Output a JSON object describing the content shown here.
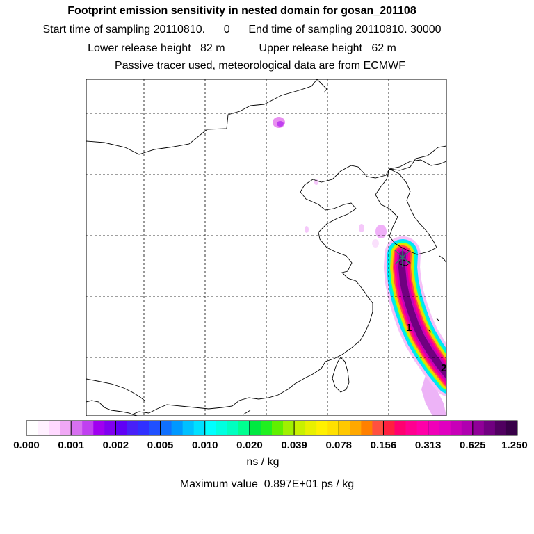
{
  "header": {
    "title": "Footprint emission sensitivity in nested domain for gosan_201108",
    "sampling": "Start time of sampling 20110810.      0      End time of sampling 20110810. 30000",
    "heights": "Lower release height   82 m           Upper release height   62 m",
    "tracer": "Passive tracer used, meteorological data are from ECMWF"
  },
  "chart_data": {
    "type": "heatmap",
    "title": "Footprint emission sensitivity in nested domain for gosan_201108",
    "colorbar": {
      "tick_labels": [
        "0.000",
        "0.001",
        "0.002",
        "0.005",
        "0.010",
        "0.020",
        "0.039",
        "0.078",
        "0.156",
        "0.313",
        "0.625",
        "1.250"
      ],
      "colors": [
        "#ffffff",
        "#fff0ff",
        "#ffd9ff",
        "#f0a8f5",
        "#d770f0",
        "#c040f0",
        "#a000f0",
        "#8000f0",
        "#6000f5",
        "#4820f8",
        "#3030ff",
        "#2050ff",
        "#1070ff",
        "#0098ff",
        "#00c0ff",
        "#00e0ff",
        "#00ffff",
        "#00ffe0",
        "#00ffc0",
        "#00ff90",
        "#00e840",
        "#20f020",
        "#60f000",
        "#a0f000",
        "#c8f000",
        "#e8f000",
        "#fff000",
        "#ffe000",
        "#ffc800",
        "#ffa800",
        "#ff8000",
        "#ff5040",
        "#ff2040",
        "#ff0070",
        "#ff0090",
        "#ff00a8",
        "#f000b8",
        "#e000c0",
        "#c800b8",
        "#b000b0",
        "#900098",
        "#700080",
        "#500060",
        "#380048"
      ],
      "unit": "ns / kg"
    },
    "labels": [
      "1",
      "2"
    ],
    "max_value_text": "Maximum value  0.897E+01 ps / kg"
  }
}
